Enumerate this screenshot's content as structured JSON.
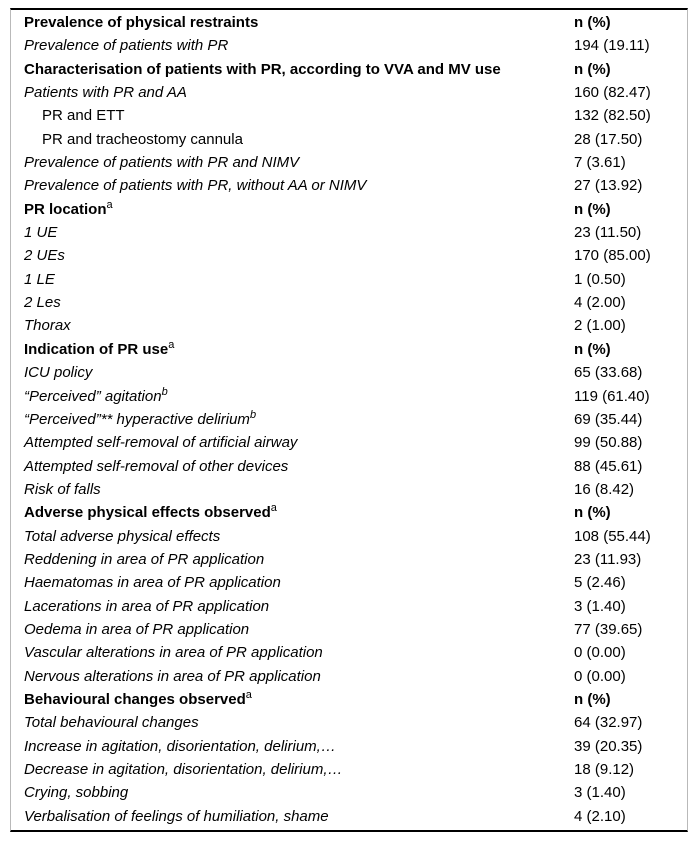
{
  "table": {
    "value_header": "n (%)",
    "colors": {
      "text": "#000000",
      "background": "#ffffff",
      "rule_dark": "#000000",
      "rule_light": "#b9b9b9"
    },
    "rows": [
      {
        "label": "Prevalence of physical restraints",
        "sup": "",
        "value": "n (%)",
        "style": "section"
      },
      {
        "label": "Prevalence of patients with PR",
        "sup": "",
        "value": "194 (19.11)",
        "style": "item"
      },
      {
        "label": "Characterisation of patients with PR, according to VVA and MV use",
        "sup": "",
        "value": "n (%)",
        "style": "section"
      },
      {
        "label": "Patients with PR and AA",
        "sup": "",
        "value": "160 (82.47)",
        "style": "item"
      },
      {
        "label": "PR and ETT",
        "sup": "",
        "value": "132 (82.50)",
        "style": "sub"
      },
      {
        "label": "PR and tracheostomy cannula",
        "sup": "",
        "value": "28 (17.50)",
        "style": "sub"
      },
      {
        "label": "Prevalence of patients with PR and NIMV",
        "sup": "",
        "value": "7 (3.61)",
        "style": "item"
      },
      {
        "label": "Prevalence of patients with PR, without AA or NIMV",
        "sup": "",
        "value": "27 (13.92)",
        "style": "item"
      },
      {
        "label": "PR location",
        "sup": "a",
        "value": "n (%)",
        "style": "section"
      },
      {
        "label": "1 UE",
        "sup": "",
        "value": "23 (11.50)",
        "style": "item"
      },
      {
        "label": "2 UEs",
        "sup": "",
        "value": "170 (85.00)",
        "style": "item"
      },
      {
        "label": "1 LE",
        "sup": "",
        "value": "1 (0.50)",
        "style": "item"
      },
      {
        "label": "2 Les",
        "sup": "",
        "value": "4 (2.00)",
        "style": "item"
      },
      {
        "label": "Thorax",
        "sup": "",
        "value": "2 (1.00)",
        "style": "item"
      },
      {
        "label": "Indication of PR use",
        "sup": "a",
        "value": "n (%)",
        "style": "section"
      },
      {
        "label": "ICU policy",
        "sup": "",
        "value": "65 (33.68)",
        "style": "item"
      },
      {
        "label": "“Perceived” agitation",
        "sup": "b",
        "value": "119 (61.40)",
        "style": "item"
      },
      {
        "label": "“Perceived”** hyperactive delirium",
        "sup": "b",
        "value": "69 (35.44)",
        "style": "item"
      },
      {
        "label": "Attempted self-removal of artificial airway",
        "sup": "",
        "value": "99 (50.88)",
        "style": "item"
      },
      {
        "label": "Attempted self-removal of other devices",
        "sup": "",
        "value": "88 (45.61)",
        "style": "item"
      },
      {
        "label": "Risk of falls",
        "sup": "",
        "value": "16 (8.42)",
        "style": "item"
      },
      {
        "label": "Adverse physical effects observed",
        "sup": "a",
        "value": "n (%)",
        "style": "section"
      },
      {
        "label": "Total adverse physical effects",
        "sup": "",
        "value": "108 (55.44)",
        "style": "item"
      },
      {
        "label": "Reddening in area of PR application",
        "sup": "",
        "value": "23 (11.93)",
        "style": "item"
      },
      {
        "label": "Haematomas in area of PR application",
        "sup": "",
        "value": "5 (2.46)",
        "style": "item"
      },
      {
        "label": "Lacerations in area of PR application",
        "sup": "",
        "value": "3 (1.40)",
        "style": "item"
      },
      {
        "label": "Oedema in area of PR application",
        "sup": "",
        "value": "77 (39.65)",
        "style": "item"
      },
      {
        "label": "Vascular alterations in area of PR application",
        "sup": "",
        "value": "0 (0.00)",
        "style": "item"
      },
      {
        "label": "Nervous alterations in area of PR application",
        "sup": "",
        "value": "0 (0.00)",
        "style": "item"
      },
      {
        "label": "Behavioural changes observed",
        "sup": "a",
        "value": "n (%)",
        "style": "section"
      },
      {
        "label": "Total behavioural changes",
        "sup": "",
        "value": "64 (32.97)",
        "style": "item"
      },
      {
        "label": "Increase in agitation, disorientation, delirium,…",
        "sup": "",
        "value": "39 (20.35)",
        "style": "item"
      },
      {
        "label": "Decrease in agitation, disorientation, delirium,…",
        "sup": "",
        "value": "18 (9.12)",
        "style": "item"
      },
      {
        "label": "Crying, sobbing",
        "sup": "",
        "value": "3 (1.40)",
        "style": "item"
      },
      {
        "label": "Verbalisation of feelings of humiliation, shame",
        "sup": "",
        "value": "4 (2.10)",
        "style": "item"
      }
    ]
  }
}
